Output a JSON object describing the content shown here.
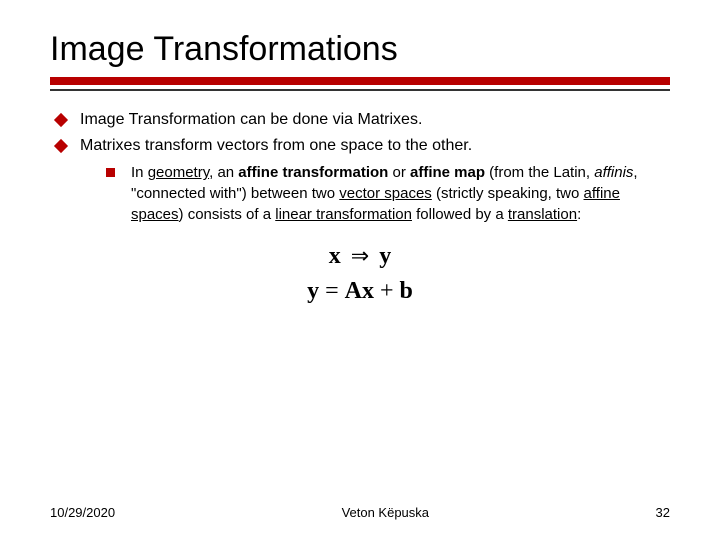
{
  "title": "Image Transformations",
  "bullets": {
    "b1": "Image Transformation can be done via Matrixes.",
    "b2": "Matrixes transform vectors from one space to the other."
  },
  "sub": {
    "prefix": "In ",
    "geometry": "geometry",
    "seg1": ", an ",
    "affine1": "affine transformation ",
    "seg2": "or ",
    "affine2": "affine map",
    "seg3": " (from the Latin, ",
    "latin": "affinis",
    "seg4": ", \"connected with\") between two ",
    "vectorspaces": "vector spaces",
    "seg5": " (strictly speaking, two ",
    "affinespaces": "affine spaces",
    "seg6": ") consists of a ",
    "linear": "linear transformation",
    "seg7": " followed by a ",
    "translation": "translation",
    "seg8": ":"
  },
  "eq": {
    "x": "x",
    "arrow": "⇒",
    "y1": "y",
    "y2": "y",
    "eq": " = ",
    "A": "A",
    "x2": "x",
    "plus": " + ",
    "b": "b"
  },
  "footer": {
    "date": "10/29/2020",
    "author": "Veton Këpuska",
    "page": "32"
  },
  "colors": {
    "accent": "#b80000",
    "text": "#000000",
    "bg": "#ffffff"
  }
}
